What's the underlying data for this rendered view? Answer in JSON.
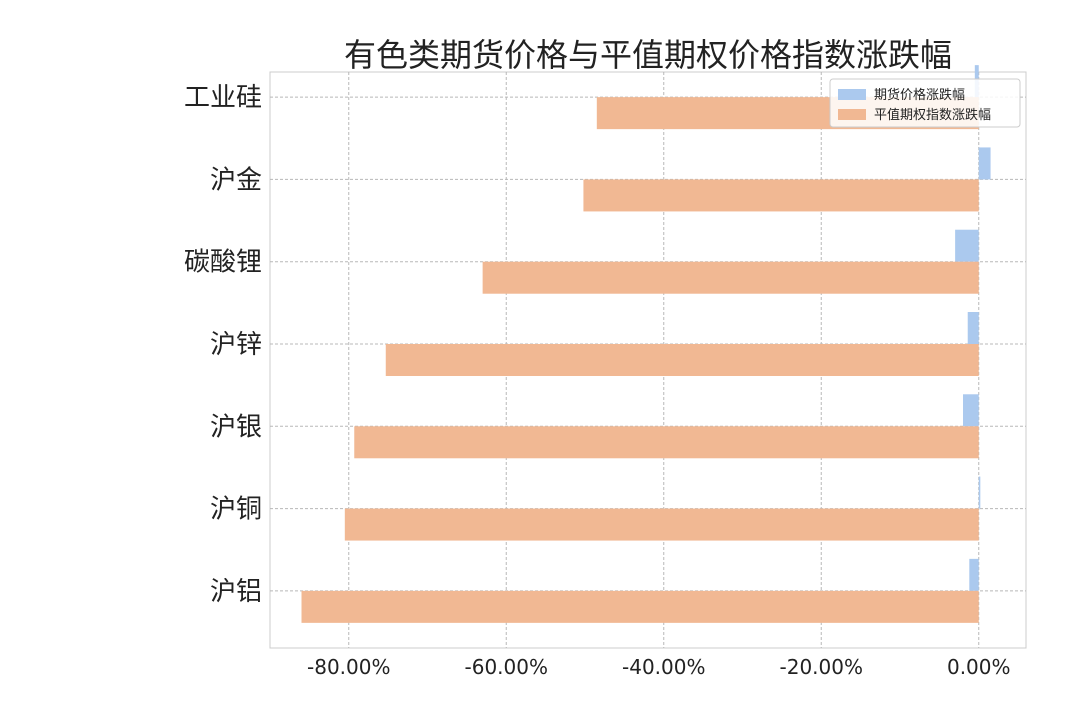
{
  "chart_data": {
    "type": "bar",
    "orientation": "horizontal",
    "title": "有色类期货价格与平值期权价格指数涨跌幅",
    "categories": [
      "沪铝",
      "沪铜",
      "沪银",
      "沪锌",
      "碳酸锂",
      "沪金",
      "工业硅"
    ],
    "series": [
      {
        "name": "期货价格涨跌幅",
        "color": "#abc9ee",
        "values": [
          -1.2,
          0.2,
          -2.0,
          -1.4,
          -3.0,
          1.5,
          -0.5
        ]
      },
      {
        "name": "平值期权指数涨跌幅",
        "color": "#f1b893",
        "values": [
          -86.0,
          -80.5,
          -79.3,
          -75.3,
          -63.0,
          -50.2,
          -48.5
        ]
      }
    ],
    "xlim": [
      -90,
      6
    ],
    "x_ticks": [
      -80,
      -60,
      -40,
      -20,
      0
    ],
    "x_tick_labels": [
      "-80.00%",
      "-60.00%",
      "-40.00%",
      "-20.00%",
      "0.00%"
    ],
    "xlabel": "",
    "ylabel": "",
    "grid": true,
    "legend_position": "top-right"
  }
}
